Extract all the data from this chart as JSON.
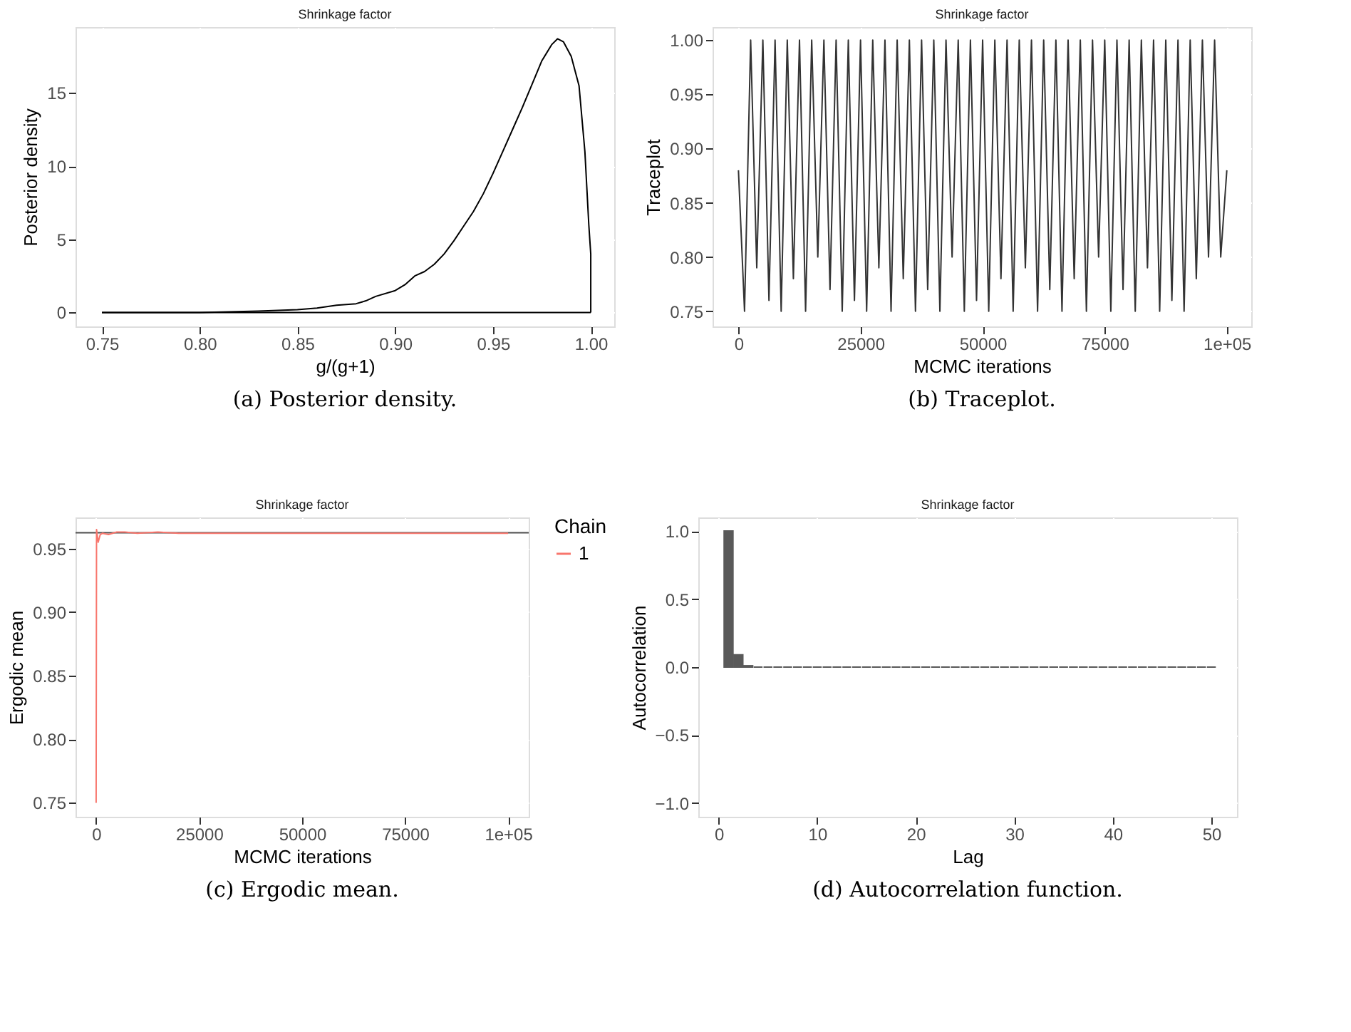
{
  "chart_data": [
    {
      "type": "line",
      "title": "Shrinkage factor",
      "xlabel": "g/(g+1)",
      "ylabel": "Posterior density",
      "annotations": [
        "(a) Posterior density."
      ],
      "grid": true,
      "x": [
        0.75,
        0.8,
        0.83,
        0.85,
        0.86,
        0.87,
        0.88,
        0.885,
        0.89,
        0.9,
        0.905,
        0.91,
        0.915,
        0.92,
        0.925,
        0.93,
        0.935,
        0.94,
        0.945,
        0.95,
        0.955,
        0.96,
        0.965,
        0.97,
        0.975,
        0.98,
        0.983,
        0.986,
        0.99,
        0.994,
        0.997,
        0.999,
        1.0,
        1.0
      ],
      "series": [
        {
          "color": "#000000",
          "values": [
            0,
            0,
            0.1,
            0.2,
            0.3,
            0.5,
            0.6,
            0.8,
            1.1,
            1.5,
            1.9,
            2.5,
            2.8,
            3.3,
            4.0,
            4.9,
            5.9,
            6.9,
            8.1,
            9.5,
            11.0,
            12.5,
            14.0,
            15.6,
            17.2,
            18.3,
            18.7,
            18.5,
            17.5,
            15.5,
            11,
            6,
            4,
            0
          ]
        },
        {
          "color": "#000000",
          "x": [
            0.75,
            1.0
          ],
          "values": [
            0,
            0
          ]
        }
      ],
      "xlim": [
        0.7365,
        1.012
      ],
      "ylim": [
        -0.95,
        19.5
      ],
      "xticks": [
        0.75,
        {
          "value": 0.8,
          "label": "0.80"
        },
        0.85,
        {
          "value": 0.9,
          "label": "0.90"
        },
        0.95,
        {
          "value": 1.0,
          "label": "1.00"
        }
      ],
      "yticks": [
        0,
        5,
        10,
        15
      ]
    },
    {
      "type": "line",
      "title": "Shrinkage factor",
      "xlabel": "MCMC iterations",
      "ylabel": "Traceplot",
      "annotations": [
        "(b) Traceplot."
      ],
      "grid": true,
      "x": [
        0,
        1250,
        2500,
        3750,
        5000,
        6250,
        7500,
        8750,
        10000,
        11250,
        12500,
        13750,
        15000,
        16250,
        17500,
        18750,
        20000,
        21250,
        22500,
        23750,
        25000,
        26250,
        27500,
        28750,
        30000,
        31250,
        32500,
        33750,
        35000,
        36250,
        37500,
        38750,
        40000,
        41250,
        42500,
        43750,
        45000,
        46250,
        47500,
        48750,
        50000,
        51250,
        52500,
        53750,
        55000,
        56250,
        57500,
        58750,
        60000,
        61250,
        62500,
        63750,
        65000,
        66250,
        67500,
        68750,
        70000,
        71250,
        72500,
        73750,
        75000,
        76250,
        77500,
        78750,
        80000,
        81250,
        82500,
        83750,
        85000,
        86250,
        87500,
        88750,
        90000,
        91250,
        92500,
        93750,
        95000,
        96250,
        97500,
        98750,
        100000
      ],
      "series": [
        {
          "color": "#333333",
          "values": [
            0.88,
            0.75,
            1.0,
            0.79,
            1.0,
            0.76,
            1.0,
            0.75,
            1.0,
            0.78,
            1.0,
            0.75,
            1.0,
            0.8,
            1.0,
            0.77,
            1.0,
            0.75,
            1.0,
            0.76,
            1.0,
            0.75,
            1.0,
            0.79,
            1.0,
            0.75,
            1.0,
            0.78,
            1.0,
            0.75,
            1.0,
            0.77,
            1.0,
            0.75,
            1.0,
            0.8,
            1.0,
            0.75,
            1.0,
            0.76,
            1.0,
            0.75,
            1.0,
            0.78,
            1.0,
            0.75,
            1.0,
            0.79,
            1.0,
            0.75,
            1.0,
            0.77,
            1.0,
            0.75,
            1.0,
            0.78,
            1.0,
            0.75,
            1.0,
            0.8,
            1.0,
            0.75,
            1.0,
            0.77,
            1.0,
            0.75,
            1.0,
            0.79,
            1.0,
            0.75,
            1.0,
            0.76,
            1.0,
            0.75,
            1.0,
            0.78,
            1.0,
            0.8,
            1.0,
            0.8,
            0.88
          ]
        }
      ],
      "xlim": [
        -5300,
        105000
      ],
      "ylim": [
        0.736,
        1.012
      ],
      "xticks": [
        0,
        25000,
        50000,
        75000,
        {
          "value": 100000,
          "label": "1e+05"
        }
      ],
      "yticks": [
        {
          "value": 0.75,
          "label": "0.75"
        },
        {
          "value": 0.8,
          "label": "0.80"
        },
        {
          "value": 0.85,
          "label": "0.85"
        },
        {
          "value": 0.9,
          "label": "0.90"
        },
        {
          "value": 0.95,
          "label": "0.95"
        },
        {
          "value": 1.0,
          "label": "1.00"
        }
      ]
    },
    {
      "type": "line",
      "title": "Shrinkage factor",
      "xlabel": "MCMC iterations",
      "ylabel": "Ergodic mean",
      "legend_title": "Chain",
      "legend": "right",
      "annotations": [
        "(c) Ergodic mean."
      ],
      "grid": true,
      "x": [
        0,
        100,
        300,
        500,
        1000,
        1500,
        3000,
        5000,
        7000,
        10000,
        15000,
        20000,
        30000,
        50000,
        75000,
        100000
      ],
      "series": [
        {
          "name": "1",
          "color": "#f8766d",
          "values": [
            0.75,
            0.965,
            0.96,
            0.955,
            0.961,
            0.962,
            0.961,
            0.963,
            0.963,
            0.962,
            0.963,
            0.962,
            0.962,
            0.962,
            0.962,
            0.962
          ]
        }
      ],
      "ref_lines": [
        {
          "axis": "y",
          "value": 0.9625,
          "color": "#4d4d4d"
        }
      ],
      "xlim": [
        -5000,
        105000
      ],
      "ylim": [
        0.739,
        0.9745
      ],
      "xticks": [
        0,
        25000,
        50000,
        75000,
        {
          "value": 100000,
          "label": "1e+05"
        }
      ],
      "yticks": [
        {
          "value": 0.75,
          "label": "0.75"
        },
        {
          "value": 0.8,
          "label": "0.80"
        },
        {
          "value": 0.85,
          "label": "0.85"
        },
        {
          "value": 0.9,
          "label": "0.90"
        },
        {
          "value": 0.95,
          "label": "0.95"
        }
      ]
    },
    {
      "type": "bar",
      "title": "Shrinkage factor",
      "xlabel": "Lag",
      "ylabel": "Autocorrelation",
      "annotations": [
        "(d) Autocorrelation function."
      ],
      "grid": true,
      "x": [
        1,
        2,
        3,
        4,
        5,
        6,
        7,
        8,
        9,
        10,
        11,
        12,
        13,
        14,
        15,
        16,
        17,
        18,
        19,
        20,
        21,
        22,
        23,
        24,
        25,
        26,
        27,
        28,
        29,
        30,
        31,
        32,
        33,
        34,
        35,
        36,
        37,
        38,
        39,
        40,
        41,
        42,
        43,
        44,
        45,
        46,
        47,
        48,
        49,
        50
      ],
      "series": [
        {
          "color": "#595959",
          "values": [
            1.0,
            0.09,
            0.01,
            0,
            0,
            0,
            0,
            0,
            0,
            0,
            0,
            0,
            0,
            0,
            0,
            0,
            0,
            0,
            0,
            0,
            0,
            0,
            0,
            0,
            0,
            0,
            0,
            0,
            0,
            0,
            0,
            0,
            0,
            0,
            0,
            0,
            0,
            0,
            0,
            0,
            0,
            0,
            0,
            0,
            0,
            0,
            0,
            0,
            0,
            0
          ]
        }
      ],
      "xlim": [
        -2.07,
        52.6
      ],
      "ylim": [
        -1.1,
        1.1
      ],
      "xticks": [
        0,
        10,
        20,
        30,
        40,
        50
      ],
      "yticks": [
        {
          "value": -1.0,
          "label": "−1.0"
        },
        {
          "value": -0.5,
          "label": "−0.5"
        },
        {
          "value": 0.0,
          "label": "0.0"
        },
        {
          "value": 0.5,
          "label": "0.5"
        },
        {
          "value": 1.0,
          "label": "1.0"
        }
      ]
    }
  ]
}
